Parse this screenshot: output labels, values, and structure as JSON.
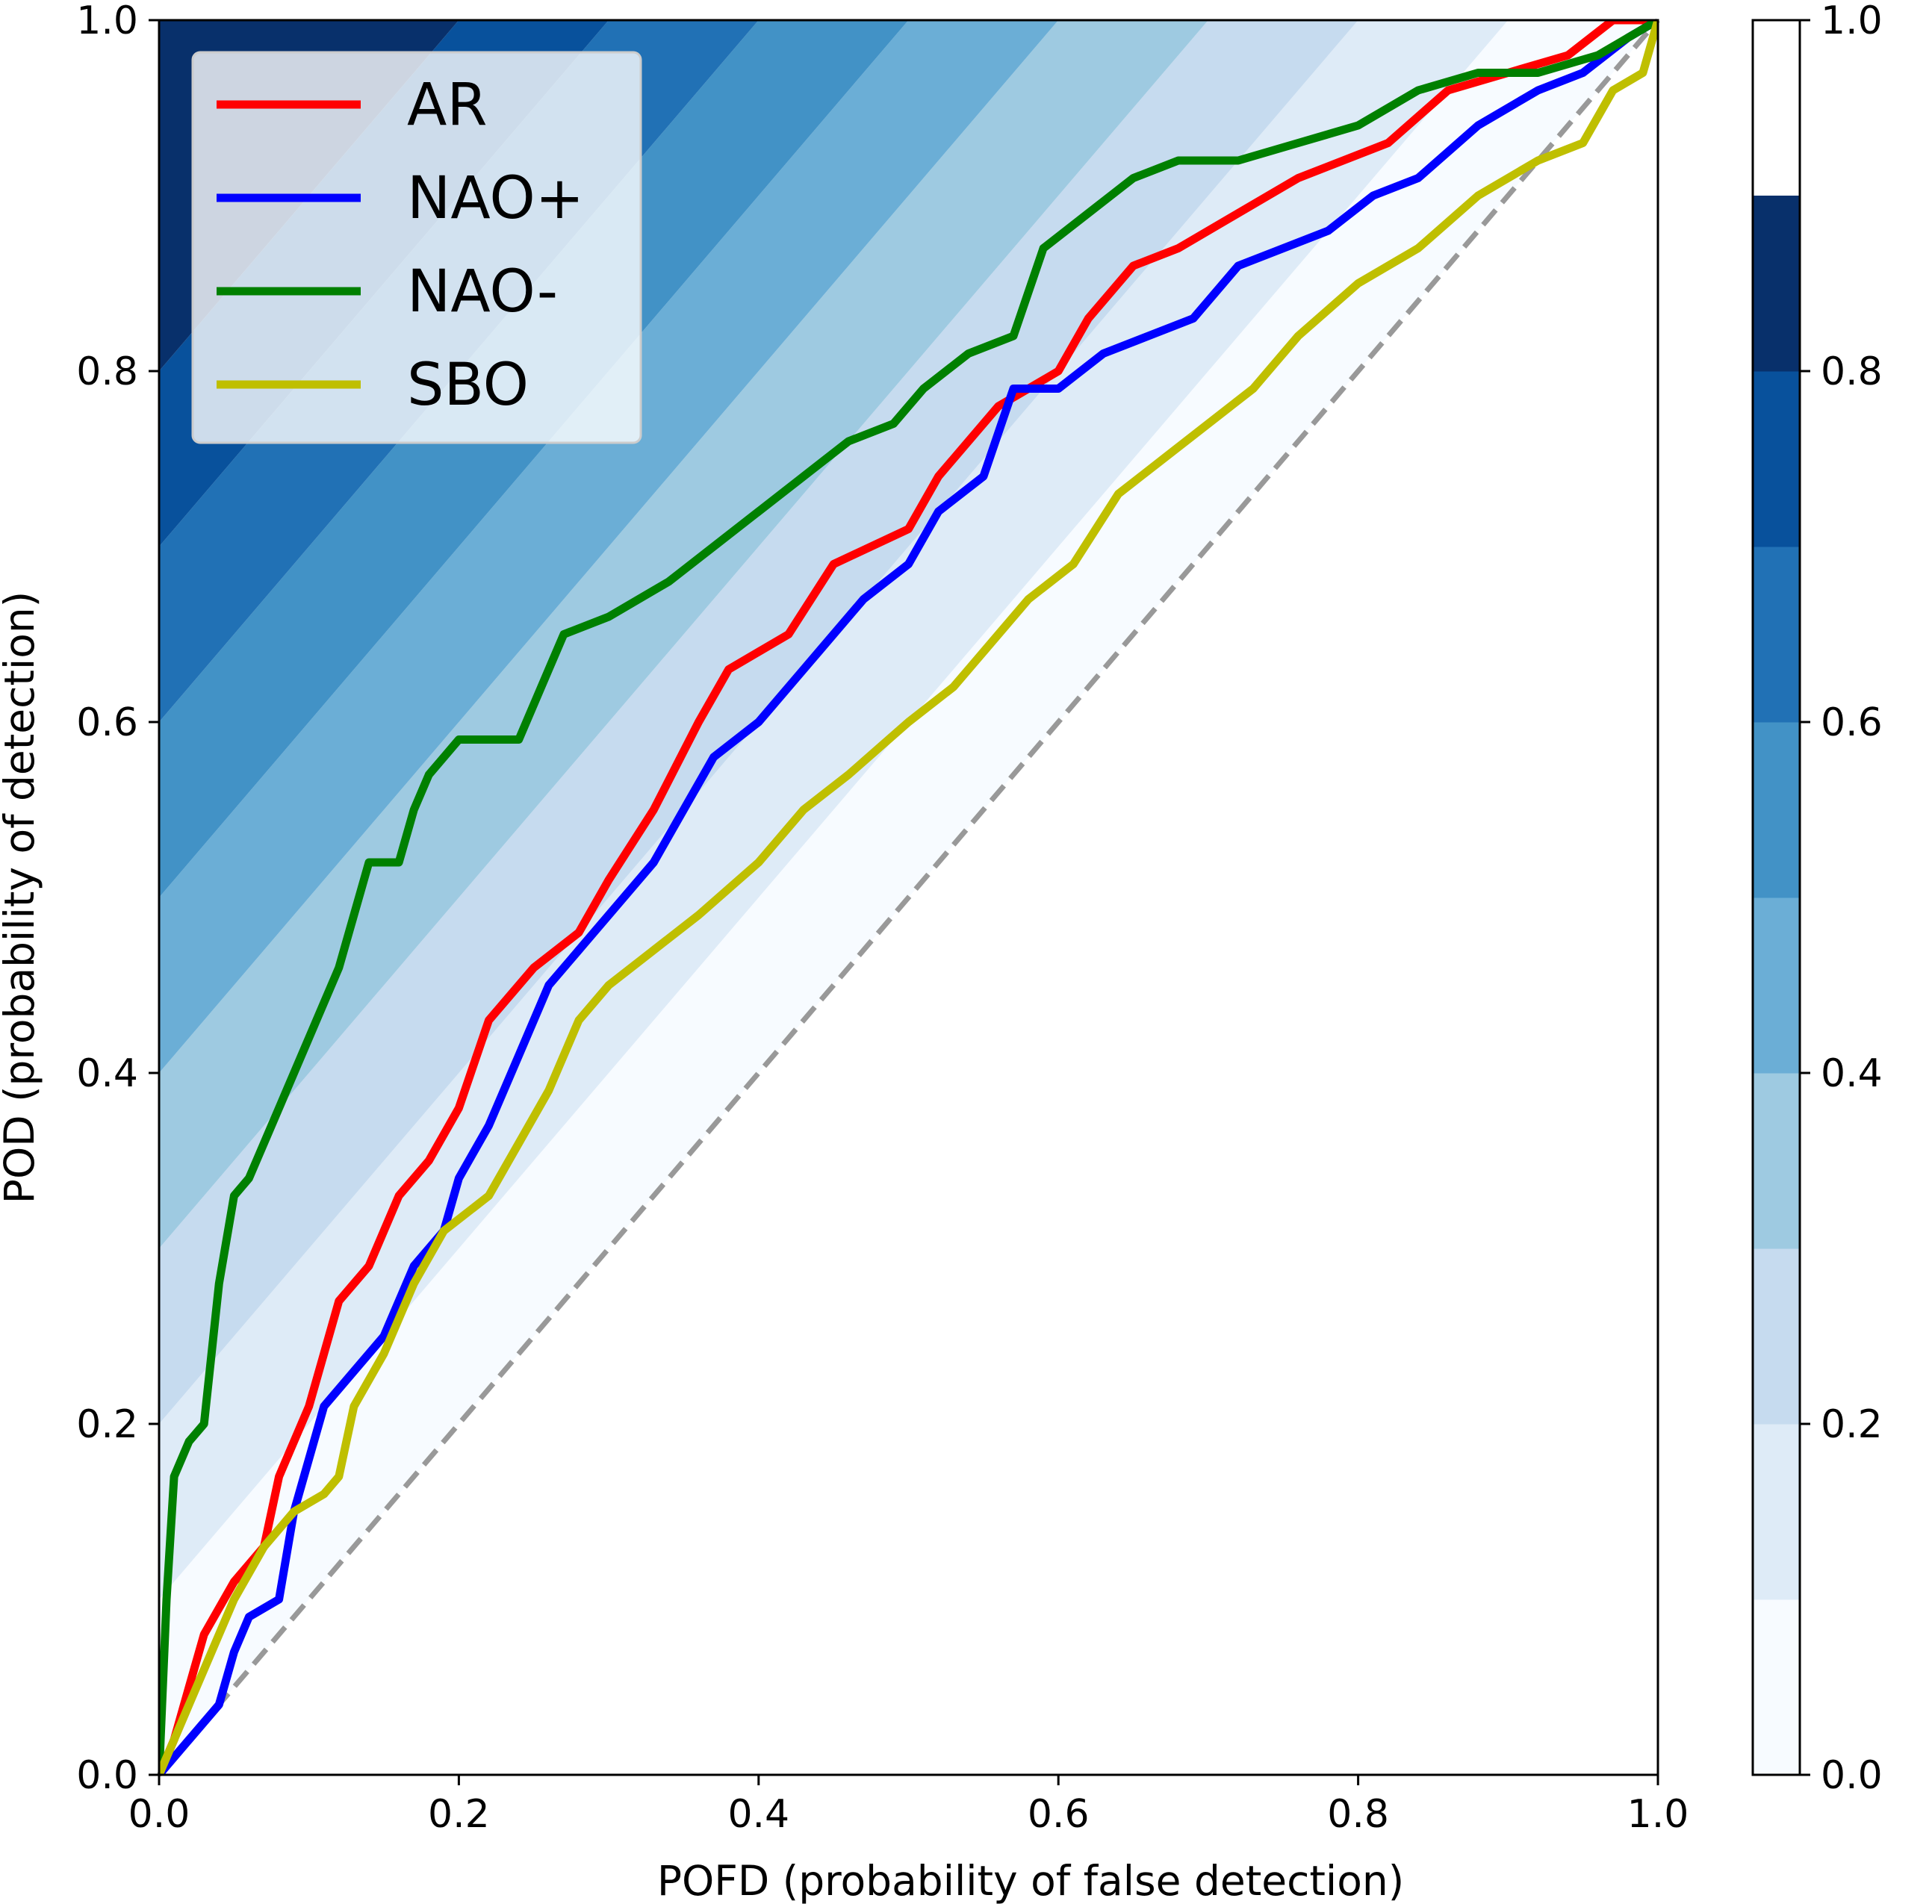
{
  "chart_data": {
    "type": "line",
    "xlabel": "POFD (probability of false detection)",
    "ylabel": "POD (probability of detection)",
    "xlim": [
      0,
      1
    ],
    "ylim": [
      0,
      1
    ],
    "x_ticks": [
      "0.0",
      "0.2",
      "0.4",
      "0.6",
      "0.8",
      "1.0"
    ],
    "y_ticks": [
      "0.0",
      "0.2",
      "0.4",
      "0.6",
      "0.8",
      "1.0"
    ],
    "legend_position": "top-left",
    "background_field": {
      "description": "filled contours of POD minus POFD",
      "levels": [
        0.0,
        0.1,
        0.2,
        0.3,
        0.4,
        0.5,
        0.6,
        0.7,
        0.8,
        0.9,
        1.0
      ],
      "colors": [
        "#f7fbff",
        "#deebf7",
        "#c6dbef",
        "#9ecae1",
        "#6baed6",
        "#4292c6",
        "#2171b5",
        "#08519c",
        "#08306b"
      ]
    },
    "colorbar": {
      "ticks": [
        "0.0",
        "0.2",
        "0.4",
        "0.6",
        "0.8",
        "1.0"
      ],
      "ylim": [
        0,
        1
      ]
    },
    "reference_line": {
      "x": [
        0,
        1
      ],
      "y": [
        0,
        1
      ],
      "color": "#999999",
      "style": "dashed"
    },
    "series": [
      {
        "name": "AR",
        "color": "#ff0000",
        "points": [
          [
            0,
            0
          ],
          [
            0.01,
            0.02
          ],
          [
            0.02,
            0.05
          ],
          [
            0.03,
            0.08
          ],
          [
            0.05,
            0.11
          ],
          [
            0.07,
            0.13
          ],
          [
            0.08,
            0.17
          ],
          [
            0.1,
            0.21
          ],
          [
            0.12,
            0.27
          ],
          [
            0.14,
            0.29
          ],
          [
            0.16,
            0.33
          ],
          [
            0.18,
            0.35
          ],
          [
            0.2,
            0.38
          ],
          [
            0.22,
            0.43
          ],
          [
            0.25,
            0.46
          ],
          [
            0.28,
            0.48
          ],
          [
            0.3,
            0.51
          ],
          [
            0.33,
            0.55
          ],
          [
            0.36,
            0.6
          ],
          [
            0.38,
            0.63
          ],
          [
            0.42,
            0.65
          ],
          [
            0.45,
            0.69
          ],
          [
            0.5,
            0.71
          ],
          [
            0.52,
            0.74
          ],
          [
            0.56,
            0.78
          ],
          [
            0.6,
            0.8
          ],
          [
            0.62,
            0.83
          ],
          [
            0.65,
            0.86
          ],
          [
            0.68,
            0.87
          ],
          [
            0.72,
            0.89
          ],
          [
            0.76,
            0.91
          ],
          [
            0.82,
            0.93
          ],
          [
            0.86,
            0.96
          ],
          [
            0.9,
            0.97
          ],
          [
            0.94,
            0.98
          ],
          [
            0.97,
            1.0
          ],
          [
            1.0,
            1.0
          ]
        ]
      },
      {
        "name": "NAO+",
        "color": "#0000ff",
        "points": [
          [
            0,
            0
          ],
          [
            0.02,
            0.02
          ],
          [
            0.04,
            0.04
          ],
          [
            0.05,
            0.07
          ],
          [
            0.06,
            0.09
          ],
          [
            0.08,
            0.1
          ],
          [
            0.09,
            0.15
          ],
          [
            0.1,
            0.18
          ],
          [
            0.11,
            0.21
          ],
          [
            0.13,
            0.23
          ],
          [
            0.15,
            0.25
          ],
          [
            0.17,
            0.29
          ],
          [
            0.19,
            0.31
          ],
          [
            0.2,
            0.34
          ],
          [
            0.22,
            0.37
          ],
          [
            0.24,
            0.41
          ],
          [
            0.26,
            0.45
          ],
          [
            0.28,
            0.47
          ],
          [
            0.3,
            0.49
          ],
          [
            0.33,
            0.52
          ],
          [
            0.35,
            0.55
          ],
          [
            0.37,
            0.58
          ],
          [
            0.4,
            0.6
          ],
          [
            0.44,
            0.64
          ],
          [
            0.47,
            0.67
          ],
          [
            0.5,
            0.69
          ],
          [
            0.52,
            0.72
          ],
          [
            0.55,
            0.74
          ],
          [
            0.57,
            0.79
          ],
          [
            0.6,
            0.79
          ],
          [
            0.63,
            0.81
          ],
          [
            0.66,
            0.82
          ],
          [
            0.69,
            0.83
          ],
          [
            0.72,
            0.86
          ],
          [
            0.75,
            0.87
          ],
          [
            0.78,
            0.88
          ],
          [
            0.81,
            0.9
          ],
          [
            0.84,
            0.91
          ],
          [
            0.88,
            0.94
          ],
          [
            0.92,
            0.96
          ],
          [
            0.95,
            0.97
          ],
          [
            0.98,
            0.99
          ],
          [
            1.0,
            1.0
          ]
        ]
      },
      {
        "name": "NAO-",
        "color": "#008000",
        "points": [
          [
            0,
            0
          ],
          [
            0.005,
            0.1
          ],
          [
            0.01,
            0.17
          ],
          [
            0.02,
            0.19
          ],
          [
            0.03,
            0.2
          ],
          [
            0.04,
            0.28
          ],
          [
            0.05,
            0.33
          ],
          [
            0.06,
            0.34
          ],
          [
            0.07,
            0.36
          ],
          [
            0.08,
            0.38
          ],
          [
            0.1,
            0.42
          ],
          [
            0.12,
            0.46
          ],
          [
            0.13,
            0.49
          ],
          [
            0.14,
            0.52
          ],
          [
            0.16,
            0.52
          ],
          [
            0.17,
            0.55
          ],
          [
            0.18,
            0.57
          ],
          [
            0.2,
            0.59
          ],
          [
            0.24,
            0.59
          ],
          [
            0.26,
            0.63
          ],
          [
            0.27,
            0.65
          ],
          [
            0.3,
            0.66
          ],
          [
            0.32,
            0.67
          ],
          [
            0.34,
            0.68
          ],
          [
            0.37,
            0.7
          ],
          [
            0.4,
            0.72
          ],
          [
            0.43,
            0.74
          ],
          [
            0.46,
            0.76
          ],
          [
            0.49,
            0.77
          ],
          [
            0.51,
            0.79
          ],
          [
            0.54,
            0.81
          ],
          [
            0.57,
            0.82
          ],
          [
            0.59,
            0.87
          ],
          [
            0.62,
            0.89
          ],
          [
            0.65,
            0.91
          ],
          [
            0.68,
            0.92
          ],
          [
            0.72,
            0.92
          ],
          [
            0.76,
            0.93
          ],
          [
            0.8,
            0.94
          ],
          [
            0.84,
            0.96
          ],
          [
            0.88,
            0.97
          ],
          [
            0.92,
            0.97
          ],
          [
            0.96,
            0.98
          ],
          [
            1.0,
            1.0
          ]
        ]
      },
      {
        "name": "SBO",
        "color": "#bfbf00",
        "points": [
          [
            0,
            0
          ],
          [
            0.01,
            0.02
          ],
          [
            0.02,
            0.04
          ],
          [
            0.03,
            0.06
          ],
          [
            0.04,
            0.08
          ],
          [
            0.05,
            0.1
          ],
          [
            0.07,
            0.13
          ],
          [
            0.09,
            0.15
          ],
          [
            0.11,
            0.16
          ],
          [
            0.12,
            0.17
          ],
          [
            0.13,
            0.21
          ],
          [
            0.15,
            0.24
          ],
          [
            0.17,
            0.28
          ],
          [
            0.19,
            0.31
          ],
          [
            0.22,
            0.33
          ],
          [
            0.24,
            0.36
          ],
          [
            0.26,
            0.39
          ],
          [
            0.28,
            0.43
          ],
          [
            0.3,
            0.45
          ],
          [
            0.33,
            0.47
          ],
          [
            0.36,
            0.49
          ],
          [
            0.4,
            0.52
          ],
          [
            0.43,
            0.55
          ],
          [
            0.46,
            0.57
          ],
          [
            0.5,
            0.6
          ],
          [
            0.53,
            0.62
          ],
          [
            0.55,
            0.64
          ],
          [
            0.58,
            0.67
          ],
          [
            0.61,
            0.69
          ],
          [
            0.64,
            0.73
          ],
          [
            0.67,
            0.75
          ],
          [
            0.7,
            0.77
          ],
          [
            0.73,
            0.79
          ],
          [
            0.76,
            0.82
          ],
          [
            0.8,
            0.85
          ],
          [
            0.84,
            0.87
          ],
          [
            0.88,
            0.9
          ],
          [
            0.92,
            0.92
          ],
          [
            0.95,
            0.93
          ],
          [
            0.97,
            0.96
          ],
          [
            0.99,
            0.97
          ],
          [
            1.0,
            1.0
          ]
        ]
      }
    ]
  }
}
